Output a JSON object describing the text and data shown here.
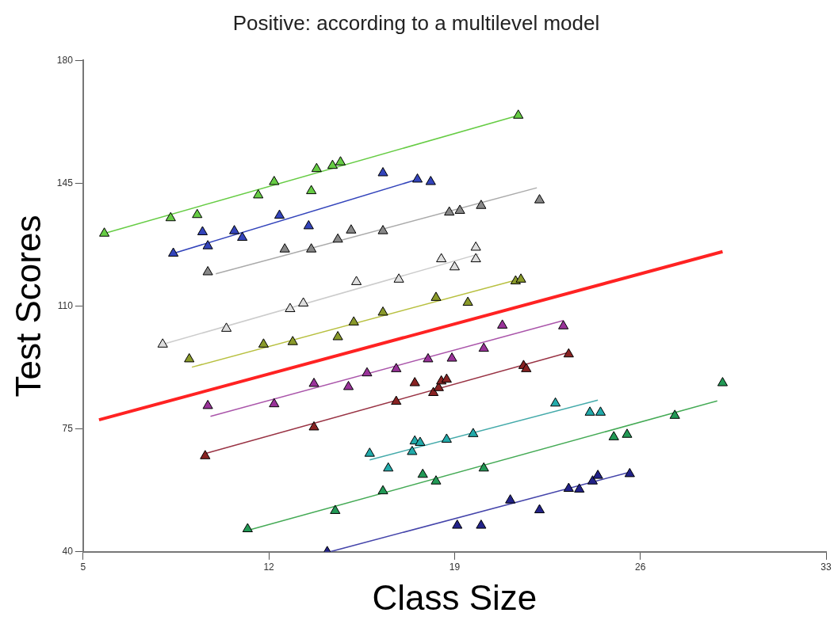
{
  "chart_data": {
    "type": "scatter",
    "title": "Positive: according to a multilevel model",
    "xlabel": "Class Size",
    "ylabel": "Test Scores",
    "xlim": [
      5,
      33
    ],
    "xticks": [
      5,
      12,
      19,
      26,
      33
    ],
    "ylim": [
      40,
      180
    ],
    "yticks": [
      40,
      75,
      110,
      145,
      180
    ],
    "grid": false,
    "legend": false,
    "marker": "triangle",
    "series": [
      {
        "color": "#66cc44",
        "x": [
          5.8,
          8.3,
          9.3,
          11.6,
          12.2,
          13.6,
          13.8,
          14.4,
          14.7,
          21.4
        ],
        "values": [
          130.7,
          135.1,
          136.0,
          141.6,
          145.4,
          142.8,
          149.1,
          150.0,
          151.0,
          164.3
        ]
      },
      {
        "type": "line",
        "marker": "none",
        "color": "#66cc44",
        "x": [
          5.8,
          21.4
        ],
        "values": [
          130.7,
          164.3
        ]
      },
      {
        "color": "#3344bb",
        "x": [
          8.4,
          9.5,
          9.7,
          10.7,
          11.0,
          12.4,
          13.5,
          16.3,
          17.6,
          18.1
        ],
        "values": [
          125.0,
          131.1,
          127.1,
          131.4,
          129.5,
          135.8,
          132.8,
          147.9,
          146.1,
          145.4
        ]
      },
      {
        "type": "line",
        "marker": "none",
        "color": "#3344bb",
        "x": [
          8.4,
          17.6
        ],
        "values": [
          125.0,
          146.1
        ]
      },
      {
        "color": "#888888",
        "x": [
          9.7,
          12.6,
          13.6,
          14.6,
          15.1,
          16.3,
          18.8,
          19.2,
          20.0,
          22.2
        ],
        "values": [
          119.7,
          126.2,
          126.2,
          129.0,
          131.6,
          131.4,
          136.7,
          137.2,
          138.6,
          140.2
        ]
      },
      {
        "type": "line",
        "marker": "none",
        "color": "#aaaaaa",
        "x": [
          10.0,
          22.1
        ],
        "values": [
          119.2,
          143.7
        ]
      },
      {
        "color": "#dddddd",
        "x": [
          8.0,
          10.4,
          12.8,
          13.3,
          15.3,
          16.9,
          18.5,
          19.0,
          19.8,
          19.8
        ],
        "values": [
          99.1,
          103.6,
          109.2,
          110.8,
          116.9,
          117.6,
          123.4,
          121.1,
          123.4,
          126.7
        ]
      },
      {
        "type": "line",
        "marker": "none",
        "color": "#cccccc",
        "x": [
          8.0,
          19.9
        ],
        "values": [
          99.1,
          124.8
        ]
      },
      {
        "color": "#8a9a2a",
        "x": [
          9.0,
          11.8,
          12.9,
          14.6,
          15.2,
          16.3,
          18.3,
          19.5,
          21.3,
          21.5
        ],
        "values": [
          94.9,
          99.1,
          99.8,
          101.2,
          105.4,
          108.2,
          112.4,
          111.0,
          117.1,
          117.6
        ]
      },
      {
        "type": "line",
        "marker": "none",
        "color": "#b8c040",
        "x": [
          9.1,
          21.5
        ],
        "values": [
          92.6,
          117.8
        ]
      },
      {
        "type": "line",
        "marker": "none",
        "color": "#ff2222",
        "x": [
          5.6,
          29.1
        ],
        "values": [
          77.6,
          125.5
        ]
      },
      {
        "color": "#993399",
        "x": [
          9.7,
          12.2,
          13.7,
          15.0,
          15.7,
          16.8,
          18.0,
          18.9,
          20.1,
          20.8,
          23.1
        ],
        "values": [
          81.6,
          82.1,
          87.9,
          87.0,
          90.9,
          92.1,
          94.9,
          95.1,
          97.9,
          104.5,
          104.3
        ]
      },
      {
        "type": "line",
        "marker": "none",
        "color": "#aa55aa",
        "x": [
          9.8,
          23.1
        ],
        "values": [
          78.6,
          105.9
        ]
      },
      {
        "color": "#882222",
        "x": [
          9.6,
          13.7,
          16.8,
          17.5,
          18.2,
          18.4,
          18.5,
          18.7,
          21.6,
          21.7,
          23.3
        ],
        "values": [
          67.3,
          75.5,
          82.8,
          88.1,
          85.3,
          86.7,
          88.6,
          89.1,
          93.0,
          92.1,
          96.3
        ]
      },
      {
        "type": "line",
        "marker": "none",
        "color": "#993344",
        "x": [
          9.6,
          23.3
        ],
        "values": [
          68.0,
          96.8
        ]
      },
      {
        "color": "#22aaaa",
        "x": [
          15.8,
          16.5,
          17.4,
          17.5,
          17.7,
          18.7,
          19.7,
          22.8,
          24.1,
          24.5
        ],
        "values": [
          68.0,
          63.8,
          68.5,
          71.5,
          71.1,
          72.0,
          73.6,
          82.3,
          79.7,
          79.7
        ]
      },
      {
        "type": "line",
        "marker": "none",
        "color": "#44aaaa",
        "x": [
          15.8,
          24.4
        ],
        "values": [
          66.2,
          83.2
        ]
      },
      {
        "color": "#229955",
        "x": [
          11.2,
          14.5,
          16.3,
          17.8,
          18.3,
          20.1,
          25.0,
          25.5,
          27.3,
          29.1
        ],
        "values": [
          46.5,
          51.7,
          57.3,
          62.0,
          60.1,
          63.8,
          72.7,
          73.4,
          78.8,
          88.1
        ]
      },
      {
        "type": "line",
        "marker": "none",
        "color": "#44aa55",
        "x": [
          11.2,
          28.9
        ],
        "values": [
          46.1,
          83.0
        ]
      },
      {
        "color": "#222288",
        "x": [
          14.2,
          19.1,
          20.0,
          21.1,
          22.2,
          23.3,
          23.7,
          24.2,
          24.4,
          25.6
        ],
        "values": [
          40.0,
          47.5,
          47.5,
          54.7,
          51.9,
          58.0,
          57.8,
          60.1,
          61.7,
          62.2
        ]
      },
      {
        "type": "line",
        "marker": "none",
        "color": "#4444aa",
        "x": [
          14.3,
          25.6
        ],
        "values": [
          40.0,
          62.7
        ]
      }
    ]
  }
}
